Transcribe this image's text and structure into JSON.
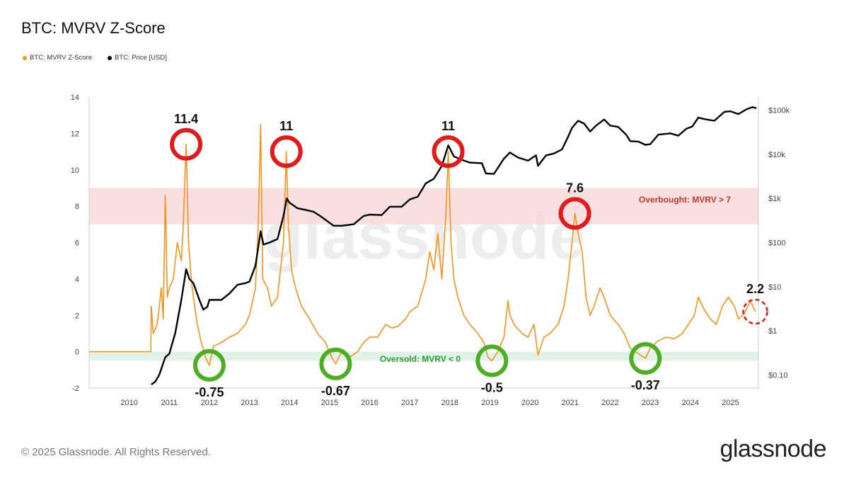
{
  "title": "BTC: MVRV Z-Score",
  "legend": [
    {
      "label": "BTC: MVRV Z-Score",
      "color": "#f7931a"
    },
    {
      "label": "BTC: Price [USD]",
      "color": "#000000"
    }
  ],
  "footer": "© 2025 Glassnode. All Rights Reserved.",
  "brand": "glassnode",
  "watermark": "glassnode",
  "chart_data": {
    "type": "line",
    "x_ticks": [
      "2010",
      "2011",
      "2012",
      "2013",
      "2014",
      "2015",
      "2016",
      "2017",
      "2018",
      "2019",
      "2020",
      "2021",
      "2022",
      "2023",
      "2024",
      "2025"
    ],
    "y_left_ticks": [
      -2,
      0,
      2,
      4,
      6,
      8,
      10,
      12,
      14
    ],
    "y_left_range": [
      -2,
      14
    ],
    "y_right_ticks": [
      "$0.10",
      "$1",
      "$10",
      "$100",
      "$1k",
      "$10k",
      "$100k"
    ],
    "y_right_scale": "log",
    "y_right_range": [
      0.05,
      200000
    ],
    "x_range": [
      2009.0,
      2025.7
    ],
    "grid": false,
    "legend_position": "top-left",
    "bands": [
      {
        "label": "Overbought: MVRV > 7",
        "from": 7,
        "to": 9,
        "color": "#f8d7d7",
        "label_color": "#c0392b"
      },
      {
        "label": "Oversold: MVRV < 0",
        "from": -0.5,
        "to": 0,
        "color": "#d9f0e2",
        "label_color": "#2ca02c"
      }
    ],
    "series": [
      {
        "name": "BTC: MVRV Z-Score",
        "color": "#f7931a",
        "axis": "left",
        "points": [
          [
            2009.0,
            0
          ],
          [
            2010.54,
            0
          ],
          [
            2010.55,
            2.5
          ],
          [
            2010.6,
            1
          ],
          [
            2010.7,
            1.5
          ],
          [
            2010.8,
            3.5
          ],
          [
            2010.85,
            1.8
          ],
          [
            2010.9,
            8.6
          ],
          [
            2010.95,
            3
          ],
          [
            2011.0,
            3.5
          ],
          [
            2011.1,
            4
          ],
          [
            2011.2,
            6
          ],
          [
            2011.3,
            5
          ],
          [
            2011.35,
            7
          ],
          [
            2011.42,
            11.4
          ],
          [
            2011.48,
            6
          ],
          [
            2011.55,
            4
          ],
          [
            2011.6,
            3
          ],
          [
            2011.7,
            1.5
          ],
          [
            2011.8,
            0.5
          ],
          [
            2011.9,
            -0.3
          ],
          [
            2012.0,
            -0.75
          ],
          [
            2012.1,
            0.3
          ],
          [
            2012.3,
            0.5
          ],
          [
            2012.5,
            0.8
          ],
          [
            2012.7,
            1
          ],
          [
            2012.9,
            1.5
          ],
          [
            2013.0,
            2
          ],
          [
            2013.15,
            3.5
          ],
          [
            2013.22,
            7
          ],
          [
            2013.28,
            12.5
          ],
          [
            2013.33,
            4
          ],
          [
            2013.45,
            3.5
          ],
          [
            2013.55,
            2.5
          ],
          [
            2013.7,
            3
          ],
          [
            2013.85,
            6
          ],
          [
            2013.92,
            11
          ],
          [
            2013.97,
            7
          ],
          [
            2014.05,
            4.5
          ],
          [
            2014.15,
            3.5
          ],
          [
            2014.3,
            2.5
          ],
          [
            2014.5,
            1.8
          ],
          [
            2014.7,
            1
          ],
          [
            2014.9,
            0.5
          ],
          [
            2015.05,
            -0.3
          ],
          [
            2015.15,
            -0.67
          ],
          [
            2015.3,
            0
          ],
          [
            2015.5,
            -0.3
          ],
          [
            2015.7,
            0
          ],
          [
            2015.85,
            0.5
          ],
          [
            2016.0,
            0.8
          ],
          [
            2016.2,
            0.8
          ],
          [
            2016.4,
            1.5
          ],
          [
            2016.55,
            1.3
          ],
          [
            2016.7,
            1.4
          ],
          [
            2016.9,
            1.8
          ],
          [
            2017.0,
            2.2
          ],
          [
            2017.2,
            2.5
          ],
          [
            2017.4,
            4
          ],
          [
            2017.5,
            5.5
          ],
          [
            2017.6,
            4.5
          ],
          [
            2017.7,
            6.5
          ],
          [
            2017.8,
            4
          ],
          [
            2017.9,
            7.5
          ],
          [
            2017.96,
            11
          ],
          [
            2018.03,
            6
          ],
          [
            2018.1,
            4
          ],
          [
            2018.2,
            3
          ],
          [
            2018.35,
            2
          ],
          [
            2018.5,
            1.5
          ],
          [
            2018.7,
            1
          ],
          [
            2018.85,
            0.5
          ],
          [
            2018.95,
            -0.3
          ],
          [
            2019.05,
            -0.5
          ],
          [
            2019.2,
            0
          ],
          [
            2019.35,
            0.8
          ],
          [
            2019.45,
            2.8
          ],
          [
            2019.5,
            2
          ],
          [
            2019.6,
            1.5
          ],
          [
            2019.8,
            1
          ],
          [
            2019.95,
            0.8
          ],
          [
            2020.1,
            1.5
          ],
          [
            2020.2,
            -0.2
          ],
          [
            2020.35,
            0.8
          ],
          [
            2020.5,
            1
          ],
          [
            2020.7,
            1.5
          ],
          [
            2020.85,
            2.5
          ],
          [
            2020.95,
            4
          ],
          [
            2021.05,
            6
          ],
          [
            2021.12,
            7.6
          ],
          [
            2021.2,
            6.5
          ],
          [
            2021.3,
            5.5
          ],
          [
            2021.4,
            3
          ],
          [
            2021.5,
            2
          ],
          [
            2021.6,
            2.5
          ],
          [
            2021.75,
            3.5
          ],
          [
            2021.85,
            3
          ],
          [
            2022.0,
            2
          ],
          [
            2022.2,
            1.5
          ],
          [
            2022.35,
            1
          ],
          [
            2022.5,
            0.2
          ],
          [
            2022.7,
            -0.1
          ],
          [
            2022.88,
            -0.37
          ],
          [
            2023.0,
            0.2
          ],
          [
            2023.2,
            0.6
          ],
          [
            2023.4,
            0.8
          ],
          [
            2023.6,
            0.7
          ],
          [
            2023.8,
            1
          ],
          [
            2023.95,
            1.5
          ],
          [
            2024.1,
            2
          ],
          [
            2024.2,
            3
          ],
          [
            2024.35,
            2.3
          ],
          [
            2024.5,
            1.8
          ],
          [
            2024.65,
            1.5
          ],
          [
            2024.8,
            2.5
          ],
          [
            2024.95,
            3
          ],
          [
            2025.1,
            2.5
          ],
          [
            2025.2,
            1.8
          ],
          [
            2025.35,
            2.1
          ],
          [
            2025.5,
            2.8
          ],
          [
            2025.62,
            2.2
          ]
        ]
      },
      {
        "name": "BTC: Price [USD]",
        "color": "#000000",
        "axis": "right",
        "points": [
          [
            2010.55,
            0.06
          ],
          [
            2010.65,
            0.07
          ],
          [
            2010.75,
            0.1
          ],
          [
            2010.9,
            0.25
          ],
          [
            2011.0,
            0.3
          ],
          [
            2011.15,
            0.9
          ],
          [
            2011.3,
            5
          ],
          [
            2011.42,
            25
          ],
          [
            2011.5,
            15
          ],
          [
            2011.6,
            12
          ],
          [
            2011.75,
            5
          ],
          [
            2011.85,
            3
          ],
          [
            2011.95,
            3.5
          ],
          [
            2012.0,
            5
          ],
          [
            2012.3,
            5
          ],
          [
            2012.5,
            7
          ],
          [
            2012.7,
            11
          ],
          [
            2012.9,
            12
          ],
          [
            2013.0,
            13
          ],
          [
            2013.15,
            30
          ],
          [
            2013.28,
            180
          ],
          [
            2013.35,
            90
          ],
          [
            2013.5,
            100
          ],
          [
            2013.7,
            120
          ],
          [
            2013.85,
            400
          ],
          [
            2013.93,
            1000
          ],
          [
            2014.0,
            800
          ],
          [
            2014.2,
            600
          ],
          [
            2014.4,
            550
          ],
          [
            2014.6,
            500
          ],
          [
            2014.8,
            380
          ],
          [
            2015.0,
            280
          ],
          [
            2015.1,
            240
          ],
          [
            2015.3,
            240
          ],
          [
            2015.6,
            260
          ],
          [
            2015.85,
            400
          ],
          [
            2016.0,
            430
          ],
          [
            2016.3,
            420
          ],
          [
            2016.5,
            650
          ],
          [
            2016.8,
            650
          ],
          [
            2017.0,
            950
          ],
          [
            2017.2,
            1100
          ],
          [
            2017.4,
            2200
          ],
          [
            2017.6,
            2800
          ],
          [
            2017.8,
            5500
          ],
          [
            2017.96,
            16000
          ],
          [
            2018.1,
            9000
          ],
          [
            2018.3,
            7500
          ],
          [
            2018.5,
            6500
          ],
          [
            2018.8,
            6300
          ],
          [
            2018.9,
            3700
          ],
          [
            2019.1,
            3600
          ],
          [
            2019.35,
            8000
          ],
          [
            2019.5,
            11000
          ],
          [
            2019.7,
            8500
          ],
          [
            2019.95,
            7200
          ],
          [
            2020.15,
            9500
          ],
          [
            2020.2,
            5500
          ],
          [
            2020.4,
            9500
          ],
          [
            2020.6,
            10500
          ],
          [
            2020.8,
            13000
          ],
          [
            2020.95,
            25000
          ],
          [
            2021.05,
            40000
          ],
          [
            2021.2,
            58000
          ],
          [
            2021.35,
            50000
          ],
          [
            2021.5,
            33000
          ],
          [
            2021.65,
            45000
          ],
          [
            2021.85,
            62000
          ],
          [
            2022.0,
            45000
          ],
          [
            2022.2,
            42000
          ],
          [
            2022.4,
            28000
          ],
          [
            2022.5,
            20000
          ],
          [
            2022.7,
            19500
          ],
          [
            2022.88,
            16500
          ],
          [
            2023.0,
            17000
          ],
          [
            2023.2,
            28000
          ],
          [
            2023.5,
            30000
          ],
          [
            2023.7,
            26500
          ],
          [
            2023.9,
            38000
          ],
          [
            2024.05,
            43000
          ],
          [
            2024.2,
            68000
          ],
          [
            2024.4,
            62000
          ],
          [
            2024.6,
            58000
          ],
          [
            2024.85,
            92000
          ],
          [
            2025.0,
            95000
          ],
          [
            2025.2,
            82000
          ],
          [
            2025.4,
            105000
          ],
          [
            2025.55,
            118000
          ],
          [
            2025.65,
            112000
          ]
        ]
      }
    ],
    "annotations": [
      {
        "label": "11.4",
        "x": 2011.42,
        "y": 11.4,
        "type": "peak"
      },
      {
        "label": "11",
        "x": 2013.92,
        "y": 11,
        "type": "peak"
      },
      {
        "label": "11",
        "x": 2017.96,
        "y": 11,
        "type": "peak"
      },
      {
        "label": "7.6",
        "x": 2021.12,
        "y": 7.6,
        "type": "peak"
      },
      {
        "label": "2.2",
        "x": 2025.62,
        "y": 2.2,
        "type": "current"
      },
      {
        "label": "-0.75",
        "x": 2012.0,
        "y": -0.75,
        "type": "trough"
      },
      {
        "label": "-0.67",
        "x": 2015.15,
        "y": -0.67,
        "type": "trough"
      },
      {
        "label": "-0.5",
        "x": 2019.05,
        "y": -0.5,
        "type": "trough"
      },
      {
        "label": "-0.37",
        "x": 2022.88,
        "y": -0.37,
        "type": "trough"
      }
    ]
  }
}
